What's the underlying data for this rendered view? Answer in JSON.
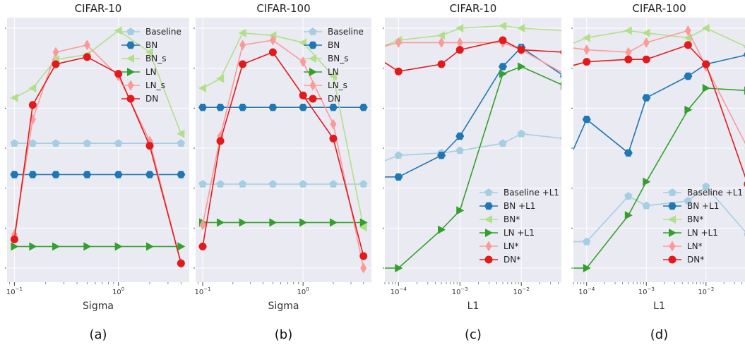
{
  "colors": {
    "plot_bg": "#eaeaf2",
    "grid": "#ffffff",
    "Baseline": "#a6cee3",
    "BN": "#1f78b4",
    "BN_s": "#b2df8a",
    "LN": "#33a02c",
    "LN_s": "#fb9a99",
    "DN": "#e31a1c"
  },
  "chart_data": [
    {
      "type": "line",
      "title": "CIFAR-10",
      "xlabel": "Sigma",
      "subfigure_label": "(a)",
      "xscale": "log",
      "xlim": [
        0.085,
        4.8
      ],
      "ylim": [
        0,
        1
      ],
      "y_tick_labels_visible": false,
      "x_ticks": [
        {
          "base": "10",
          "exp": "−1",
          "value": 0.1
        },
        {
          "base": "10",
          "exp": "0",
          "value": 1
        }
      ],
      "legend_placement": "top-right",
      "x": [
        0.1,
        0.15,
        0.25,
        0.5,
        1,
        2,
        4
      ],
      "series": [
        {
          "name": "Baseline",
          "color_key": "Baseline",
          "marker": "pentagon",
          "values": [
            0.52,
            0.52,
            0.52,
            0.52,
            0.52,
            0.52,
            0.52
          ]
        },
        {
          "name": "BN",
          "color_key": "BN",
          "marker": "hexagon",
          "values": [
            0.39,
            0.39,
            0.39,
            0.39,
            0.39,
            0.39,
            0.39
          ]
        },
        {
          "name": "BN_s",
          "color_key": "BN_s",
          "marker": "triangle-left",
          "values": [
            0.71,
            0.75,
            0.87,
            0.89,
            0.99,
            0.9,
            0.56
          ]
        },
        {
          "name": "LN",
          "color_key": "LN",
          "marker": "triangle-right",
          "values": [
            0.09,
            0.09,
            0.09,
            0.09,
            0.09,
            0.09,
            0.09
          ]
        },
        {
          "name": "LN_s",
          "color_key": "LN_s",
          "marker": "diamond",
          "values": [
            0.14,
            0.62,
            0.9,
            0.93,
            0.8,
            0.53,
            0.02
          ]
        },
        {
          "name": "DN",
          "color_key": "DN",
          "marker": "circle",
          "values": [
            0.12,
            0.68,
            0.85,
            0.88,
            0.81,
            0.51,
            0.02
          ]
        }
      ]
    },
    {
      "type": "line",
      "title": "CIFAR-100",
      "xlabel": "Sigma",
      "subfigure_label": "(b)",
      "xscale": "log",
      "xlim": [
        0.085,
        4.8
      ],
      "ylim": [
        0,
        1
      ],
      "y_tick_labels_visible": false,
      "x_ticks": [
        {
          "base": "10",
          "exp": "−1",
          "value": 0.1
        },
        {
          "base": "10",
          "exp": "0",
          "value": 1
        }
      ],
      "legend_placement": "top-right",
      "x": [
        0.1,
        0.15,
        0.25,
        0.5,
        1,
        2,
        4
      ],
      "series": [
        {
          "name": "Baseline",
          "color_key": "Baseline",
          "marker": "pentagon",
          "values": [
            0.35,
            0.35,
            0.35,
            0.35,
            0.35,
            0.35,
            0.35
          ]
        },
        {
          "name": "BN",
          "color_key": "BN",
          "marker": "hexagon",
          "values": [
            0.67,
            0.67,
            0.67,
            0.67,
            0.67,
            0.67,
            0.67
          ]
        },
        {
          "name": "BN_s",
          "color_key": "BN_s",
          "marker": "triangle-left",
          "values": [
            0.75,
            0.79,
            0.98,
            0.97,
            0.94,
            0.8,
            0.17
          ]
        },
        {
          "name": "LN",
          "color_key": "LN",
          "marker": "triangle-right",
          "values": [
            0.19,
            0.19,
            0.19,
            0.19,
            0.19,
            0.19,
            0.19
          ]
        },
        {
          "name": "LN_s",
          "color_key": "LN_s",
          "marker": "diamond",
          "values": [
            0.18,
            0.55,
            0.93,
            0.95,
            0.86,
            0.6,
            0.0
          ]
        },
        {
          "name": "DN",
          "color_key": "DN",
          "marker": "circle",
          "values": [
            0.09,
            0.53,
            0.85,
            0.9,
            0.72,
            0.54,
            0.05
          ]
        }
      ]
    },
    {
      "type": "line",
      "title": "CIFAR-10",
      "xlabel": "L1",
      "subfigure_label": "(c)",
      "xscale": "log",
      "xlim": [
        6e-05,
        0.045
      ],
      "ylim": [
        0,
        1
      ],
      "y_tick_labels_visible": false,
      "x_ticks": [
        {
          "base": "10",
          "exp": "−4",
          "value": 0.0001
        },
        {
          "base": "10",
          "exp": "−3",
          "value": 0.001
        },
        {
          "base": "10",
          "exp": "−2",
          "value": 0.01
        }
      ],
      "legend_placement": "lower-right",
      "x": [
        5e-05,
        0.0001,
        0.0005,
        0.001,
        0.005,
        0.01,
        0.05
      ],
      "series": [
        {
          "name": "Baseline +L1",
          "color_key": "Baseline",
          "marker": "pentagon",
          "values": [
            0.44,
            0.47,
            0.48,
            0.49,
            0.52,
            0.56,
            0.54
          ]
        },
        {
          "name": "BN +L1",
          "color_key": "BN",
          "marker": "hexagon",
          "values": [
            0.38,
            0.38,
            0.47,
            0.55,
            0.84,
            0.92,
            0.8
          ]
        },
        {
          "name": "BN*",
          "color_key": "BN_s",
          "marker": "triangle-left",
          "values": [
            0.92,
            0.95,
            0.97,
            1.0,
            1.01,
            1.0,
            0.99
          ]
        },
        {
          "name": "LN +L1",
          "color_key": "LN",
          "marker": "triangle-right",
          "values": [
            0.0,
            0.0,
            0.16,
            0.24,
            0.81,
            0.84,
            0.76
          ]
        },
        {
          "name": "LN*",
          "color_key": "LN_s",
          "marker": "diamond",
          "values": [
            0.92,
            0.94,
            0.94,
            0.94,
            0.94,
            0.91,
            0.81
          ]
        },
        {
          "name": "DN*",
          "color_key": "DN",
          "marker": "circle",
          "values": [
            0.87,
            0.82,
            0.85,
            0.91,
            0.95,
            0.91,
            0.9
          ]
        }
      ]
    },
    {
      "type": "line",
      "title": "CIFAR-100",
      "xlabel": "L1",
      "subfigure_label": "(d)",
      "xscale": "log",
      "xlim": [
        6e-05,
        0.045
      ],
      "ylim": [
        0,
        1
      ],
      "y_tick_labels_visible": false,
      "x_ticks": [
        {
          "base": "10",
          "exp": "−4",
          "value": 0.0001
        },
        {
          "base": "10",
          "exp": "−3",
          "value": 0.001
        },
        {
          "base": "10",
          "exp": "−2",
          "value": 0.01
        }
      ],
      "legend_placement": "lower-right",
      "x": [
        5e-05,
        0.0001,
        0.0005,
        0.001,
        0.005,
        0.01,
        0.05
      ],
      "series": [
        {
          "name": "Baseline +L1",
          "color_key": "Baseline",
          "marker": "pentagon",
          "values": [
            0.11,
            0.11,
            0.3,
            0.26,
            0.28,
            0.34,
            0.14
          ]
        },
        {
          "name": "BN +L1",
          "color_key": "BN",
          "marker": "hexagon",
          "values": [
            0.45,
            0.62,
            0.48,
            0.71,
            0.8,
            0.85,
            0.89
          ]
        },
        {
          "name": "BN*",
          "color_key": "BN_s",
          "marker": "triangle-left",
          "values": [
            0.93,
            0.96,
            0.99,
            0.98,
            0.96,
            1.0,
            0.92
          ]
        },
        {
          "name": "LN +L1",
          "color_key": "LN",
          "marker": "triangle-right",
          "values": [
            0.0,
            0.0,
            0.22,
            0.36,
            0.66,
            0.75,
            0.74
          ]
        },
        {
          "name": "LN*",
          "color_key": "LN_s",
          "marker": "diamond",
          "values": [
            0.92,
            0.91,
            0.9,
            0.94,
            0.99,
            0.84,
            0.5
          ]
        },
        {
          "name": "DN*",
          "color_key": "DN",
          "marker": "circle",
          "values": [
            0.84,
            0.86,
            0.87,
            0.87,
            0.93,
            0.85,
            0.35
          ]
        }
      ]
    }
  ]
}
